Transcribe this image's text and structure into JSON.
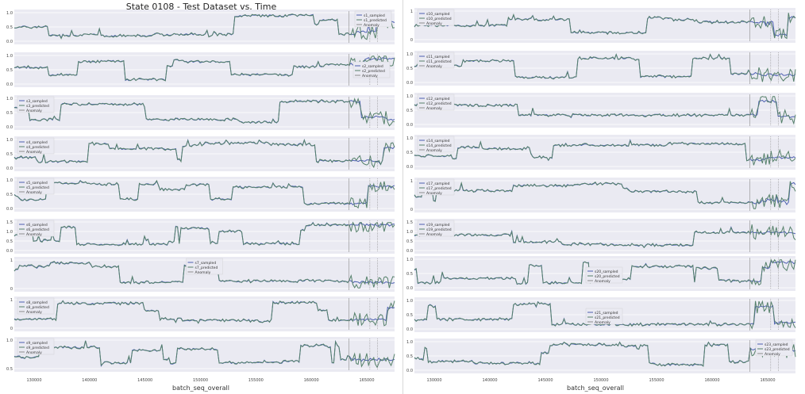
{
  "figure": {
    "title": "State 0108 - Test Dataset vs. Time",
    "xlabel": "batch_seq_overall",
    "xticks": [
      "130000",
      "140000",
      "145000",
      "150000",
      "155000",
      "160000",
      "165000"
    ],
    "colors": {
      "sampled": "#4c5fb0",
      "predicted": "#55806a",
      "anomaly": "#8c8c8c",
      "panel_bg": "#eaeaf2"
    }
  },
  "chart_data": [
    {
      "type": "line",
      "column": "left",
      "ylim": [
        0,
        1
      ],
      "yticks": [
        "0.0",
        "0.5",
        "1.0"
      ],
      "legend": [
        "s1_sampled",
        "s1_predicted",
        "Anomaly"
      ],
      "legend_loc": "top-right"
    },
    {
      "type": "line",
      "column": "left",
      "ylim": [
        0,
        1
      ],
      "yticks": [
        "0.0",
        "0.5",
        "1.0"
      ],
      "legend": [
        "s2_sampled",
        "s2_predicted",
        "Anomaly"
      ],
      "legend_loc": "center-right"
    },
    {
      "type": "line",
      "column": "left",
      "ylim": [
        0,
        1
      ],
      "yticks": [
        "0.0",
        "0.5",
        "1.0"
      ],
      "legend": [
        "s3_sampled",
        "s3_predicted",
        "Anomaly"
      ],
      "legend_loc": "top-left"
    },
    {
      "type": "line",
      "column": "left",
      "ylim": [
        0,
        1
      ],
      "yticks": [
        "0.0",
        "0.5",
        "1.0"
      ],
      "legend": [
        "s4_sampled",
        "s4_predicted",
        "Anomaly"
      ],
      "legend_loc": "top-left"
    },
    {
      "type": "line",
      "column": "left",
      "ylim": [
        0,
        1
      ],
      "yticks": [
        "0.0",
        "0.5",
        "1.0"
      ],
      "legend": [
        "s5_sampled",
        "s5_predicted",
        "Anomaly"
      ],
      "legend_loc": "top-left"
    },
    {
      "type": "line",
      "column": "left",
      "ylim": [
        0,
        1.5
      ],
      "yticks": [
        "0.0",
        "0.5",
        "1.0",
        "1.5"
      ],
      "legend": [
        "s6_sampled",
        "s6_predicted",
        "Anomaly"
      ],
      "legend_loc": "top-left"
    },
    {
      "type": "line",
      "column": "left",
      "ylim": [
        0,
        1.5
      ],
      "yticks": [
        "0",
        "1"
      ],
      "legend": [
        "s7_sampled",
        "s7_predicted",
        "Anomaly"
      ],
      "legend_loc": "top-center"
    },
    {
      "type": "line",
      "column": "left",
      "ylim": [
        0,
        1.5
      ],
      "yticks": [
        "0",
        "1"
      ],
      "legend": [
        "s8_sampled",
        "s8_predicted",
        "Anomaly"
      ],
      "legend_loc": "top-left"
    },
    {
      "type": "line",
      "column": "left",
      "ylim": [
        0.4,
        1.0
      ],
      "yticks": [
        "0.5",
        "1.0"
      ],
      "legend": [
        "s9_sampled",
        "s9_predicted",
        "Anomaly"
      ],
      "legend_loc": "top-left"
    },
    {
      "type": "line",
      "column": "right",
      "ylim": [
        0,
        1.5
      ],
      "yticks": [
        "0",
        "1"
      ],
      "legend": [
        "s10_sampled",
        "s10_predicted",
        "Anomaly"
      ],
      "legend_loc": "top-left"
    },
    {
      "type": "line",
      "column": "right",
      "ylim": [
        0,
        1
      ],
      "yticks": [
        "0.0",
        "0.5",
        "1.0"
      ],
      "legend": [
        "s11_sampled",
        "s11_predicted",
        "Anomaly"
      ],
      "legend_loc": "top-left"
    },
    {
      "type": "line",
      "column": "right",
      "ylim": [
        0,
        1
      ],
      "yticks": [
        "0.0",
        "0.5",
        "1.0"
      ],
      "legend": [
        "s12_sampled",
        "s12_predicted",
        "Anomaly"
      ],
      "legend_loc": "top-left"
    },
    {
      "type": "line",
      "column": "right",
      "ylim": [
        0,
        1
      ],
      "yticks": [
        "0.0",
        "0.5",
        "1.0"
      ],
      "legend": [
        "s14_sampled",
        "s14_predicted",
        "Anomaly"
      ],
      "legend_loc": "top-left"
    },
    {
      "type": "line",
      "column": "right",
      "ylim": [
        -0.2,
        1.2
      ],
      "yticks": [
        "0",
        "1"
      ],
      "legend": [
        "s17_sampled",
        "s17_predicted",
        "Anomaly"
      ],
      "legend_loc": "top-left"
    },
    {
      "type": "line",
      "column": "right",
      "ylim": [
        0,
        1.5
      ],
      "yticks": [
        "0.0",
        "0.5",
        "1.0",
        "1.5"
      ],
      "legend": [
        "s19_sampled",
        "s19_predicted",
        "Anomaly"
      ],
      "legend_loc": "top-left"
    },
    {
      "type": "line",
      "column": "right",
      "ylim": [
        0,
        1
      ],
      "yticks": [
        "0.0",
        "0.5",
        "1.0"
      ],
      "legend": [
        "s20_sampled",
        "s20_predicted",
        "Anomaly"
      ],
      "legend_loc": "center"
    },
    {
      "type": "line",
      "column": "right",
      "ylim": [
        0,
        1
      ],
      "yticks": [
        "0.0",
        "0.5",
        "1.0"
      ],
      "legend": [
        "s21_sampled",
        "s21_predicted",
        "Anomaly"
      ],
      "legend_loc": "center"
    },
    {
      "type": "line",
      "column": "right",
      "ylim": [
        0,
        1
      ],
      "yticks": [
        "0.0",
        "0.5",
        "1.0"
      ],
      "legend": [
        "s23_sampled",
        "s23_predicted",
        "Anomaly"
      ],
      "legend_loc": "top-right"
    }
  ]
}
